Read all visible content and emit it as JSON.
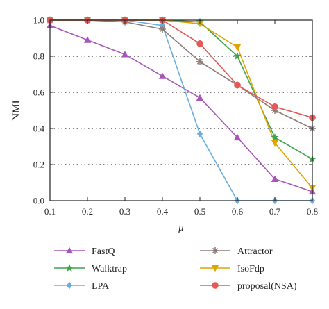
{
  "chart_data": {
    "type": "line",
    "title": "",
    "xlabel": "μ",
    "ylabel": "NMI",
    "x": [
      0.1,
      0.2,
      0.3,
      0.4,
      0.5,
      0.6,
      0.7,
      0.8
    ],
    "x_tick_labels": [
      "0.1",
      "0.2",
      "0.3",
      "0.4",
      "0.5",
      "0.6",
      "0.7",
      "0.8"
    ],
    "y_tick_labels": [
      "0.0",
      "0.2",
      "0.4",
      "0.6",
      "0.8",
      "1.0"
    ],
    "xlim": [
      0.1,
      0.8
    ],
    "ylim": [
      0,
      1.0
    ],
    "grid": "horizontal dotted",
    "legend_position": "bottom",
    "series": [
      {
        "name": "FastQ",
        "color": "#a855b8",
        "marker": "triangle",
        "values": [
          0.97,
          0.89,
          0.81,
          0.69,
          0.57,
          0.35,
          0.12,
          0.05
        ]
      },
      {
        "name": "Walktrap",
        "color": "#3fa34d",
        "marker": "star",
        "values": [
          1.0,
          1.0,
          1.0,
          1.0,
          0.99,
          0.8,
          0.35,
          0.23
        ]
      },
      {
        "name": "LPA",
        "color": "#6aaee0",
        "marker": "diamond",
        "values": [
          1.0,
          1.0,
          1.0,
          0.97,
          0.37,
          0.0,
          0.0,
          0.0
        ]
      },
      {
        "name": "Attractor",
        "color": "#8b7b76",
        "marker": "asterisk",
        "values": [
          1.0,
          1.0,
          0.99,
          0.95,
          0.77,
          0.64,
          0.5,
          0.4
        ]
      },
      {
        "name": "IsoFdp",
        "color": "#e0a400",
        "marker": "triangle-down",
        "values": [
          1.0,
          1.0,
          1.0,
          1.0,
          0.98,
          0.85,
          0.32,
          0.07
        ]
      },
      {
        "name": "proposal(NSA)",
        "color": "#e45858",
        "marker": "circle",
        "values": [
          1.0,
          1.0,
          1.0,
          1.0,
          0.87,
          0.64,
          0.52,
          0.46
        ]
      }
    ]
  }
}
